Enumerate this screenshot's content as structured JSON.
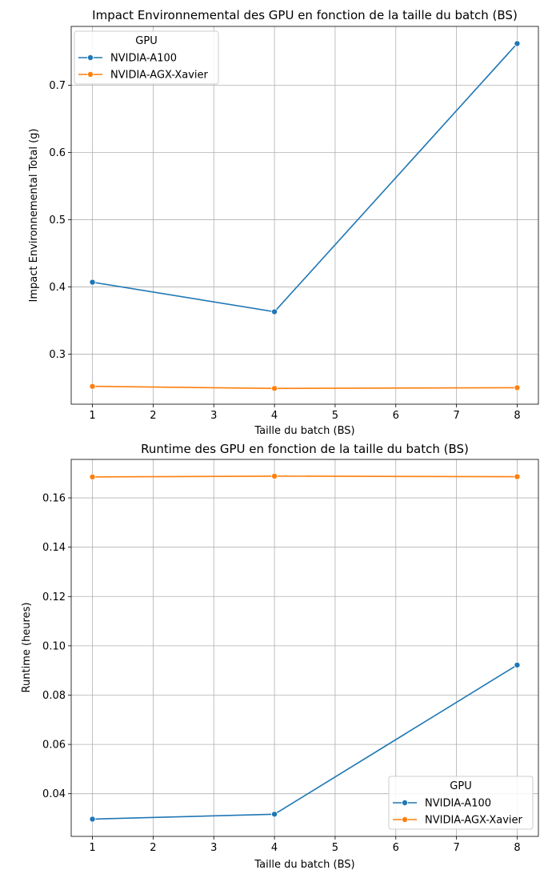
{
  "chart_data": [
    {
      "type": "line",
      "title": "Impact Environnemental des GPU en fonction de la taille du batch (BS)",
      "xlabel": "Taille du batch (BS)",
      "ylabel": "Impact Environnemental Total (g)",
      "x": [
        1,
        4,
        8
      ],
      "xlim": [
        0.65,
        8.35
      ],
      "ylim": [
        0.2255,
        0.7875
      ],
      "xticks": [
        1,
        2,
        3,
        4,
        5,
        6,
        7,
        8
      ],
      "yticks": [
        0.3,
        0.4,
        0.5,
        0.6,
        0.7
      ],
      "ytick_labels": [
        "0.3",
        "0.4",
        "0.5",
        "0.6",
        "0.7"
      ],
      "grid": true,
      "legend_title": "GPU",
      "legend_position": "top-left",
      "series": [
        {
          "name": "NVIDIA-A100",
          "color": "#1f77b4",
          "values": [
            0.407,
            0.363,
            0.762
          ]
        },
        {
          "name": "NVIDIA-AGX-Xavier",
          "color": "#ff7f0e",
          "values": [
            0.252,
            0.249,
            0.25
          ]
        }
      ]
    },
    {
      "type": "line",
      "title": "Runtime des GPU en fonction de la taille du batch (BS)",
      "xlabel": "Taille du batch (BS)",
      "ylabel": "Runtime (heures)",
      "x": [
        1,
        4,
        8
      ],
      "xlim": [
        0.65,
        8.35
      ],
      "ylim": [
        0.0227,
        0.1756
      ],
      "xticks": [
        1,
        2,
        3,
        4,
        5,
        6,
        7,
        8
      ],
      "yticks": [
        0.04,
        0.06,
        0.08,
        0.1,
        0.12,
        0.14,
        0.16
      ],
      "ytick_labels": [
        "0.04",
        "0.06",
        "0.08",
        "0.10",
        "0.12",
        "0.14",
        "0.16"
      ],
      "grid": true,
      "legend_title": "GPU",
      "legend_position": "bottom-right",
      "series": [
        {
          "name": "NVIDIA-A100",
          "color": "#1f77b4",
          "values": [
            0.0297,
            0.0317,
            0.0922
          ]
        },
        {
          "name": "NVIDIA-AGX-Xavier",
          "color": "#ff7f0e",
          "values": [
            0.1685,
            0.1688,
            0.1686
          ]
        }
      ]
    }
  ]
}
